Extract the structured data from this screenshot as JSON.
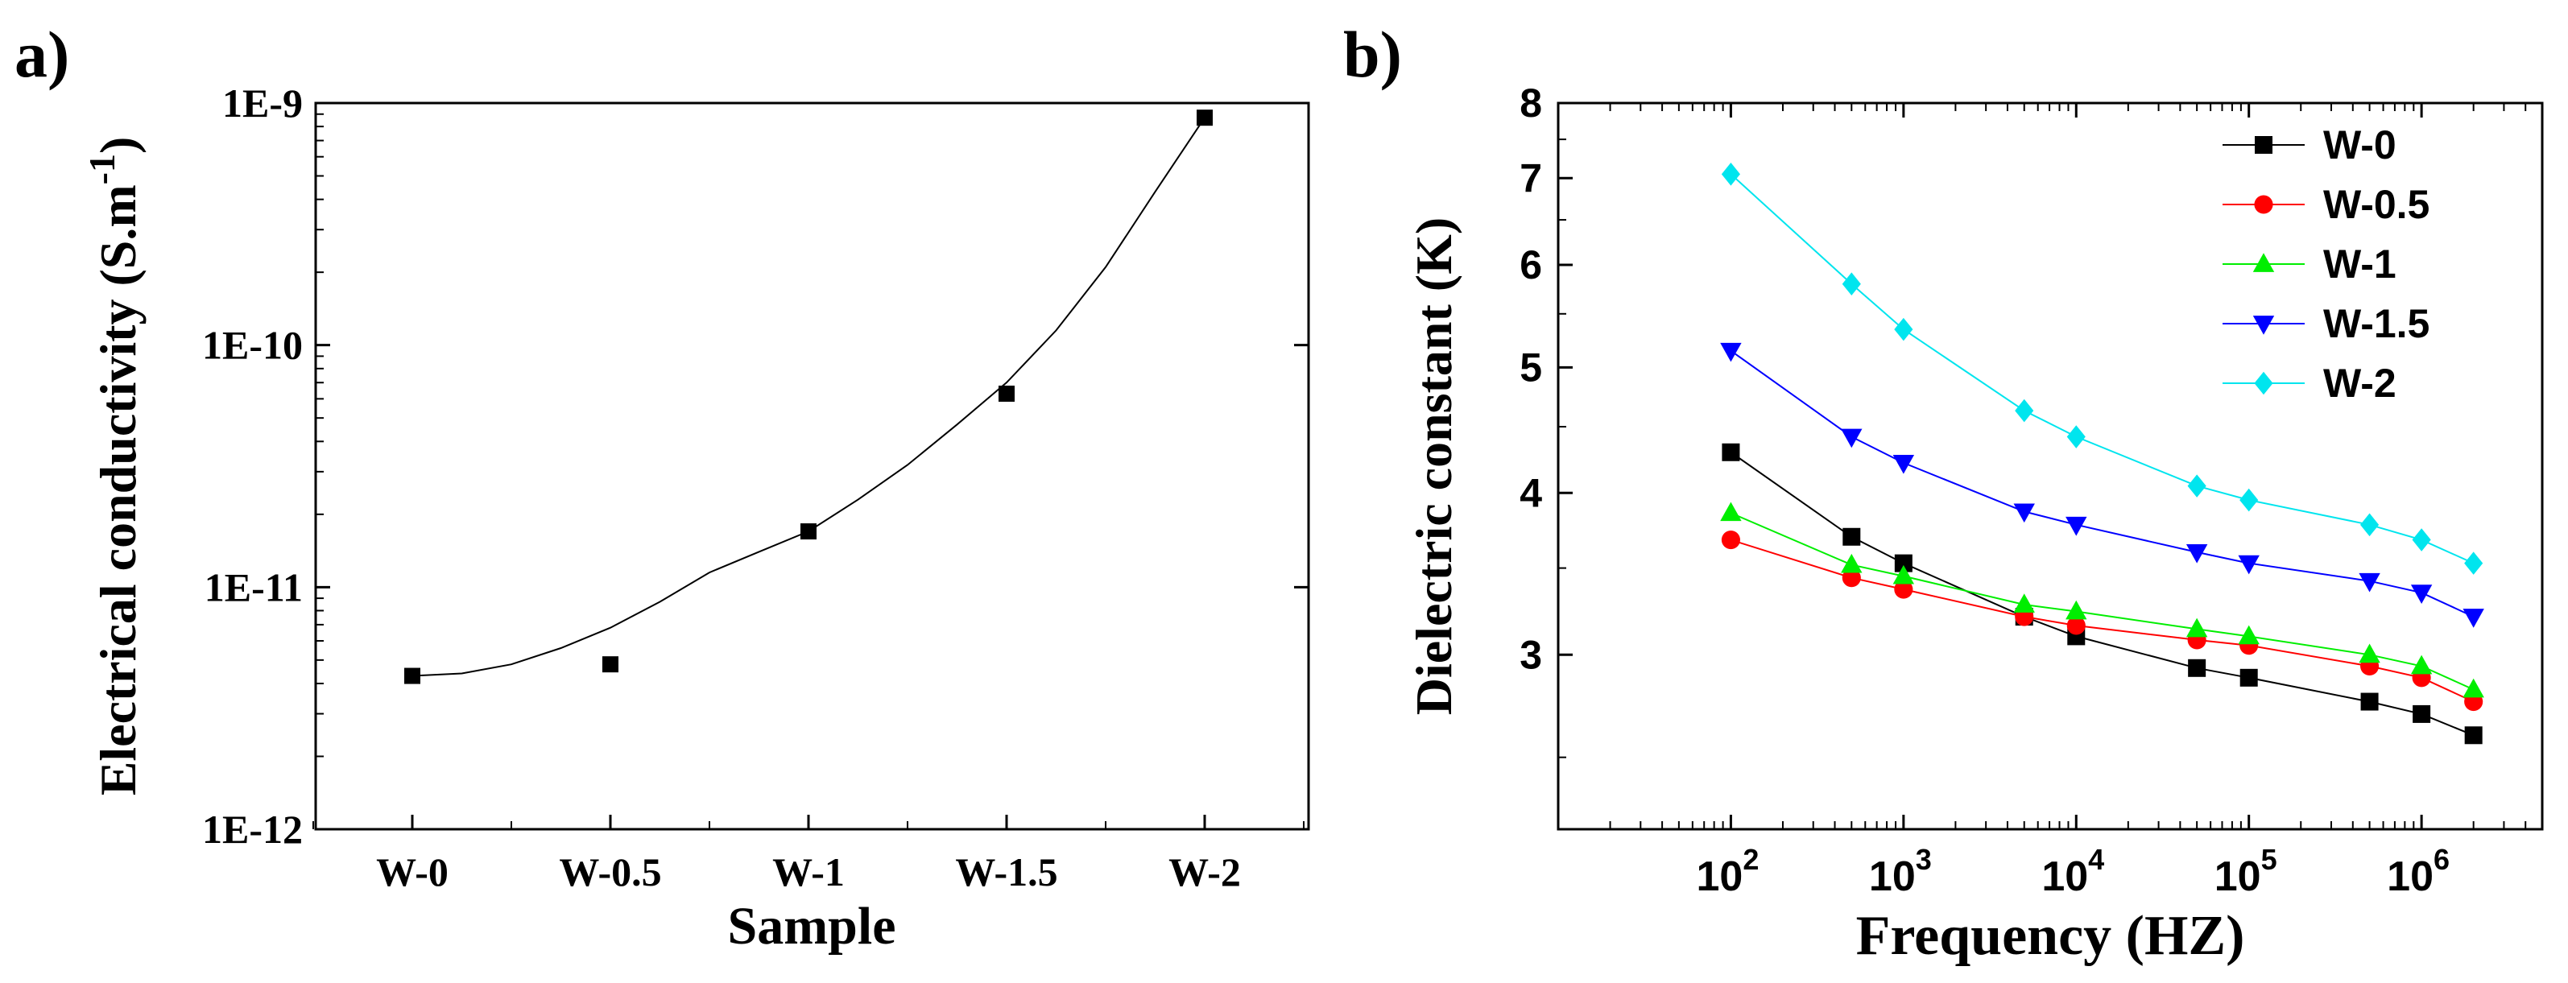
{
  "chart_data": [
    {
      "type": "scatter",
      "panel_label": "a)",
      "title": "",
      "xlabel": "Sample",
      "ylabel_main": "Electrical conductivity (S.m",
      "ylabel_sup": "-1",
      "ylabel_close": ")",
      "yscale": "log",
      "ylim": [
        1e-12,
        1e-09
      ],
      "categories": [
        "W-0",
        "W-0.5",
        "W-1",
        "W-1.5",
        "W-2"
      ],
      "ytick_values": [
        1e-12,
        1e-11,
        1e-10,
        1e-09
      ],
      "ytick_labels": [
        "1E-12",
        "1E-11",
        "1E-10",
        "1E-9"
      ],
      "series": [
        {
          "name": "Electrical conductivity",
          "values": [
            4.3e-12,
            4.8e-12,
            1.7e-11,
            6.3e-11,
            8.7e-10
          ],
          "color": "#000000",
          "marker": "square"
        }
      ],
      "fit": {
        "type": "smooth-curve",
        "color": "#000000",
        "points_x": [
          0,
          0.25,
          0.5,
          0.75,
          1,
          1.25,
          1.5,
          1.75,
          2,
          2.25,
          2.5,
          2.75,
          3,
          3.25,
          3.5,
          3.75,
          4
        ],
        "points_y": [
          4.3e-12,
          4.4e-12,
          4.8e-12,
          5.6e-12,
          6.8e-12,
          8.7e-12,
          1.15e-11,
          1.4e-11,
          1.7e-11,
          2.3e-11,
          3.2e-11,
          4.7e-11,
          7e-11,
          1.15e-10,
          2.1e-10,
          4.3e-10,
          8.7e-10
        ]
      }
    },
    {
      "type": "line",
      "panel_label": "b)",
      "title": "",
      "xlabel": "Frequency (HZ)",
      "ylabel": "Dielectric constant (K)",
      "xscale": "log",
      "yscale": "log",
      "xlim": [
        10,
        5000000
      ],
      "ylim": [
        2.2,
        8
      ],
      "xtick_values": [
        100,
        1000,
        10000,
        100000,
        1000000
      ],
      "xtick_base": "10",
      "xtick_exponents": [
        "2",
        "3",
        "4",
        "5",
        "6"
      ],
      "ytick_values": [
        3,
        4,
        5,
        6,
        7,
        8
      ],
      "ytick_labels": [
        "3",
        "4",
        "5",
        "6",
        "7",
        "8"
      ],
      "x": [
        100,
        500,
        1000,
        5000,
        10000,
        50000,
        100000,
        500000,
        1000000,
        2000000
      ],
      "legend_position": "top-right",
      "series": [
        {
          "name": "W-0",
          "color": "#000000",
          "marker": "square",
          "values": [
            4.3,
            3.7,
            3.53,
            3.21,
            3.1,
            2.93,
            2.88,
            2.76,
            2.7,
            2.6
          ]
        },
        {
          "name": "W-0.5",
          "color": "#ff0000",
          "marker": "circle",
          "values": [
            3.68,
            3.44,
            3.37,
            3.21,
            3.16,
            3.08,
            3.05,
            2.94,
            2.88,
            2.76
          ]
        },
        {
          "name": "W-1",
          "color": "#00ee00",
          "marker": "triangle-up",
          "values": [
            3.86,
            3.52,
            3.45,
            3.28,
            3.24,
            3.14,
            3.1,
            3.0,
            2.94,
            2.82
          ]
        },
        {
          "name": "W-1.5",
          "color": "#0000ff",
          "marker": "triangle-down",
          "values": [
            5.15,
            4.42,
            4.22,
            3.87,
            3.78,
            3.6,
            3.53,
            3.42,
            3.35,
            3.21
          ]
        },
        {
          "name": "W-2",
          "color": "#00e5ee",
          "marker": "diamond",
          "values": [
            7.05,
            5.8,
            5.35,
            4.63,
            4.42,
            4.05,
            3.95,
            3.78,
            3.68,
            3.53
          ]
        }
      ]
    }
  ]
}
